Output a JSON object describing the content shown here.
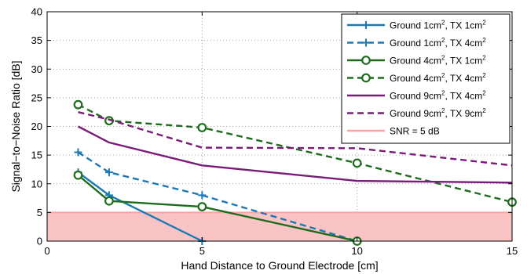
{
  "chart_data": {
    "type": "line",
    "xlabel": "Hand Distance to Ground Electrode [cm]",
    "ylabel": "Signal−to−Noise Ratio [dB]",
    "xlim": [
      0,
      15
    ],
    "ylim": [
      0,
      40
    ],
    "xticks": [
      "0",
      "5",
      "10",
      "15"
    ],
    "yticks": [
      "0",
      "5",
      "10",
      "15",
      "20",
      "25",
      "30",
      "35",
      "40"
    ],
    "grid": true,
    "legend_position": "top-right",
    "threshold": {
      "label": "SNR = 5 dB",
      "y": 5,
      "fill_from": 0,
      "color": "#f4a6a6",
      "fill_color": "#fbc4c4"
    },
    "series": [
      {
        "name": "Ground 1cm2, TX 1cm2",
        "legend_parts": [
          "Ground 1cm",
          "2",
          ", TX 1cm",
          "2"
        ],
        "color": "#1a7ab8",
        "dash": "solid",
        "marker": "plus",
        "x": [
          1,
          2,
          5
        ],
        "y": [
          12,
          8,
          0
        ]
      },
      {
        "name": "Ground 1cm2, TX 4cm2",
        "legend_parts": [
          "Ground 1cm",
          "2",
          ", TX 4cm",
          "2"
        ],
        "color": "#1a7ab8",
        "dash": "dashed",
        "marker": "plus",
        "x": [
          1,
          2,
          5,
          10
        ],
        "y": [
          15.5,
          12,
          8,
          0
        ]
      },
      {
        "name": "Ground 4cm2, TX 1cm2",
        "legend_parts": [
          "Ground 4cm",
          "2",
          ", TX 1cm",
          "2"
        ],
        "color": "#1e6b1e",
        "dash": "solid",
        "marker": "circle",
        "x": [
          1,
          2,
          5,
          10
        ],
        "y": [
          11.5,
          7,
          6,
          0
        ]
      },
      {
        "name": "Ground 4cm2, TX 4cm2",
        "legend_parts": [
          "Ground 4cm",
          "2",
          ", TX 4cm",
          "2"
        ],
        "color": "#1e6b1e",
        "dash": "dashed",
        "marker": "circle",
        "x": [
          1,
          2,
          5,
          10,
          15
        ],
        "y": [
          23.8,
          21,
          19.8,
          13.6,
          6.8
        ]
      },
      {
        "name": "Ground 9cm2, TX 4cm2",
        "legend_parts": [
          "Ground 9cm",
          "2",
          ", TX 4cm",
          "2"
        ],
        "color": "#7a1a7a",
        "dash": "solid",
        "marker": "none",
        "x": [
          1,
          2,
          5,
          10,
          15
        ],
        "y": [
          20,
          17.2,
          13.2,
          10.5,
          10.2
        ]
      },
      {
        "name": "Ground 9cm2, TX 9cm2",
        "legend_parts": [
          "Ground 9cm",
          "2",
          ", TX 9cm",
          "2"
        ],
        "color": "#7a1a7a",
        "dash": "dashed",
        "marker": "none",
        "x": [
          1,
          2,
          5,
          10,
          15
        ],
        "y": [
          22.5,
          21.2,
          16.3,
          16.2,
          13.2
        ]
      }
    ]
  }
}
